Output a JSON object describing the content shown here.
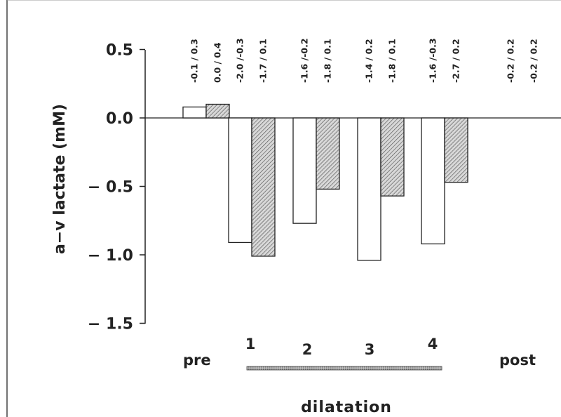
{
  "chart_data": {
    "type": "bar",
    "ylabel": "a−v lactate (mM)",
    "xlabel": "dilatation",
    "ylim": [
      -1.5,
      0.5
    ],
    "yticks": [
      "0.5",
      "0.0",
      "-0.5",
      "-1.0",
      "-1.5"
    ],
    "categories": [
      "pre",
      "1",
      "2",
      "3",
      "4",
      "post"
    ],
    "series": [
      {
        "values": [
          0.08,
          -0.91,
          -0.77,
          -1.04,
          -0.92,
          0.0
        ],
        "color": "#ffffff"
      },
      {
        "values": [
          0.1,
          -1.01,
          -0.52,
          -0.57,
          -0.47,
          0.0
        ],
        "color": "#b8b8b8",
        "pattern": "diagonal-hatch"
      }
    ],
    "range_labels": [
      [
        "-0.1 / 0.3",
        "0.0 / 0.4"
      ],
      [
        "-2.0 /-0.3",
        "-1.7 / 0.1"
      ],
      [
        "-1.6 /-0.2",
        "-1.8 / 0.1"
      ],
      [
        "-1.4 / 0.2",
        "-1.8 / 0.1"
      ],
      [
        "-1.6 /-0.3",
        "-2.7 / 0.2"
      ],
      [
        "-0.2 / 0.2",
        "-0.2 / 0.2"
      ]
    ],
    "grid": false,
    "legend": "none"
  }
}
